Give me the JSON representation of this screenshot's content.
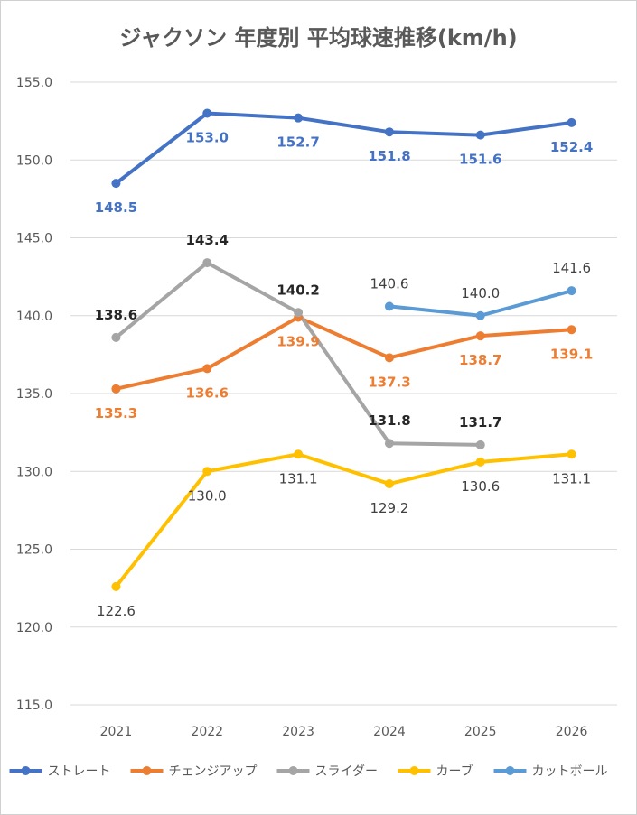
{
  "chart_data": {
    "type": "line",
    "title": "ジャクソン 年度別 平均球速推移(km/h)",
    "xlabel": "",
    "ylabel": "",
    "categories": [
      "2021",
      "2022",
      "2023",
      "2024",
      "2025",
      "2026"
    ],
    "ylim": [
      115.0,
      155.0
    ],
    "yticks": [
      "115.0",
      "120.0",
      "125.0",
      "130.0",
      "135.0",
      "140.0",
      "145.0",
      "150.0",
      "155.0"
    ],
    "grid": true,
    "legend_position": "bottom",
    "series": [
      {
        "name": "ストレート",
        "color": "#4472C4",
        "bold_labels": true,
        "label_pos": "below",
        "values": [
          148.5,
          153.0,
          152.7,
          151.8,
          151.6,
          152.4
        ],
        "labels": [
          "148.5",
          "153.0",
          "152.7",
          "151.8",
          "151.6",
          "152.4"
        ]
      },
      {
        "name": "チェンジアップ",
        "color": "#ED7D31",
        "bold_labels": true,
        "label_pos": "below",
        "values": [
          135.3,
          136.6,
          139.9,
          137.3,
          138.7,
          139.1
        ],
        "labels": [
          "135.3",
          "136.6",
          "139.9",
          "137.3",
          "138.7",
          "139.1"
        ]
      },
      {
        "name": "スライダー",
        "color": "#A5A5A5",
        "bold_labels": true,
        "label_pos": "above",
        "label_color": "#262626",
        "values": [
          138.6,
          143.4,
          140.2,
          131.8,
          131.7,
          null
        ],
        "labels": [
          "138.6",
          "143.4",
          "140.2",
          "131.8",
          "131.7",
          null
        ]
      },
      {
        "name": "カーブ",
        "color": "#FFC000",
        "bold_labels": false,
        "label_pos": "below",
        "label_color": "#404040",
        "values": [
          122.6,
          130.0,
          131.1,
          129.2,
          130.6,
          131.1
        ],
        "labels": [
          "122.6",
          "130.0",
          "131.1",
          "129.2",
          "130.6",
          "131.1"
        ]
      },
      {
        "name": "カットボール",
        "color": "#5B9BD5",
        "bold_labels": false,
        "label_pos": "above",
        "label_color": "#404040",
        "values": [
          null,
          null,
          null,
          140.6,
          140.0,
          141.6
        ],
        "labels": [
          null,
          null,
          null,
          "140.6",
          "140.0",
          "141.6"
        ]
      }
    ]
  }
}
